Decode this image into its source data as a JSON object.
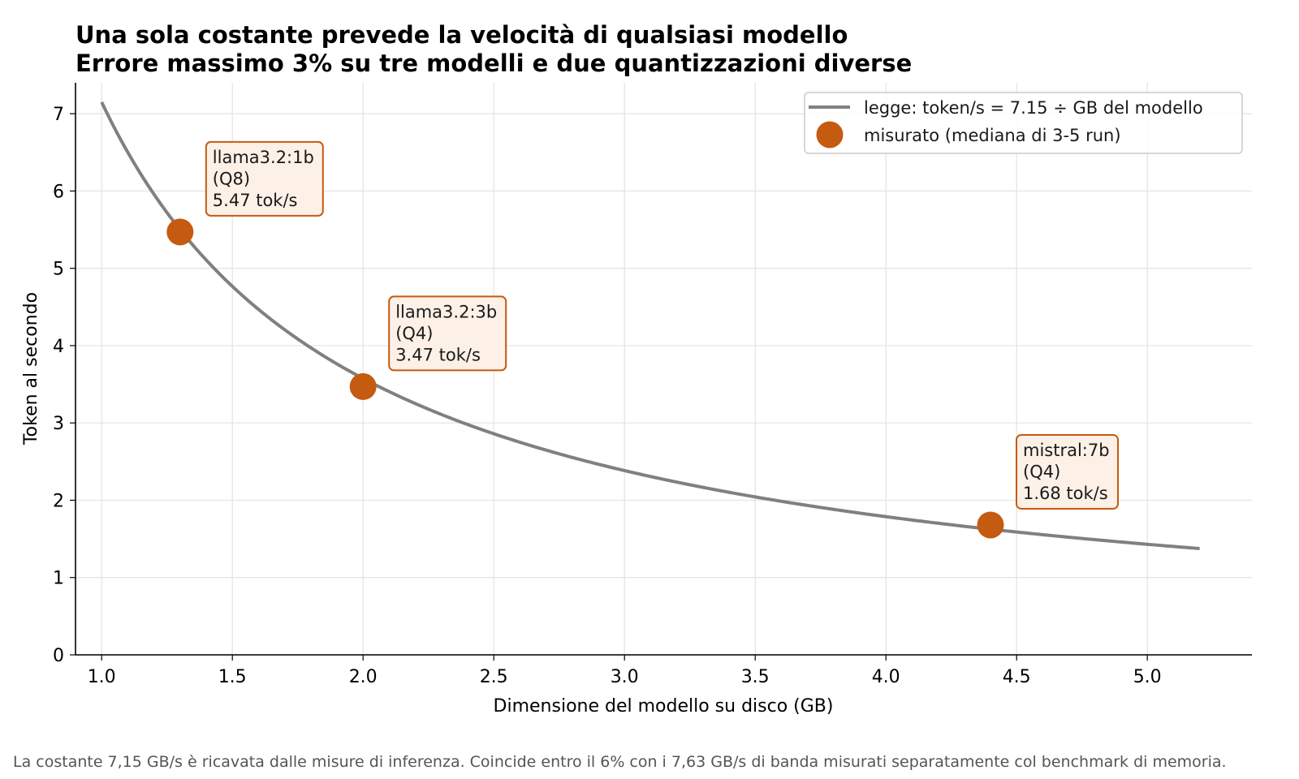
{
  "chart_data": {
    "type": "scatter",
    "title": "Una sola costante prevede la velocità di qualsiasi modello",
    "subtitle": "Errore massimo 3% su tre modelli e due quantizzazioni diverse",
    "xlabel": "Dimensione del modello su disco (GB)",
    "ylabel": "Token al secondo",
    "xlim": [
      0.9,
      5.4
    ],
    "ylim": [
      0,
      7.4
    ],
    "x_ticks": [
      "1.0",
      "1.5",
      "2.0",
      "2.5",
      "3.0",
      "3.5",
      "4.0",
      "4.5",
      "5.0"
    ],
    "y_ticks": [
      "0",
      "1",
      "2",
      "3",
      "4",
      "5",
      "6",
      "7"
    ],
    "grid": true,
    "legend_position": "top-right",
    "law": {
      "name": "legge: token/s = 7.15 ÷ GB del modello",
      "constant": 7.15,
      "x_range": [
        1.0,
        5.2
      ],
      "color": "#808080"
    },
    "series": [
      {
        "name": "misurato (mediana di 3-5 run)",
        "color": "#c55a11",
        "points": [
          {
            "x": 1.3,
            "y": 5.47,
            "label_lines": [
              "llama3.2:1b",
              "(Q8)",
              "5.47 tok/s"
            ]
          },
          {
            "x": 2.0,
            "y": 3.47,
            "label_lines": [
              "llama3.2:3b",
              "(Q4)",
              "3.47 tok/s"
            ]
          },
          {
            "x": 4.4,
            "y": 1.68,
            "label_lines": [
              "mistral:7b",
              "(Q4)",
              "1.68 tok/s"
            ]
          }
        ]
      }
    ],
    "annotation_style": {
      "fill": "#fcf0e7",
      "border": "#c55a11"
    }
  },
  "footnote": "La costante 7,15 GB/s è ricavata dalle misure di inferenza. Coincide entro il 6% con i 7,63 GB/s di banda misurati separatamente col benchmark di memoria."
}
